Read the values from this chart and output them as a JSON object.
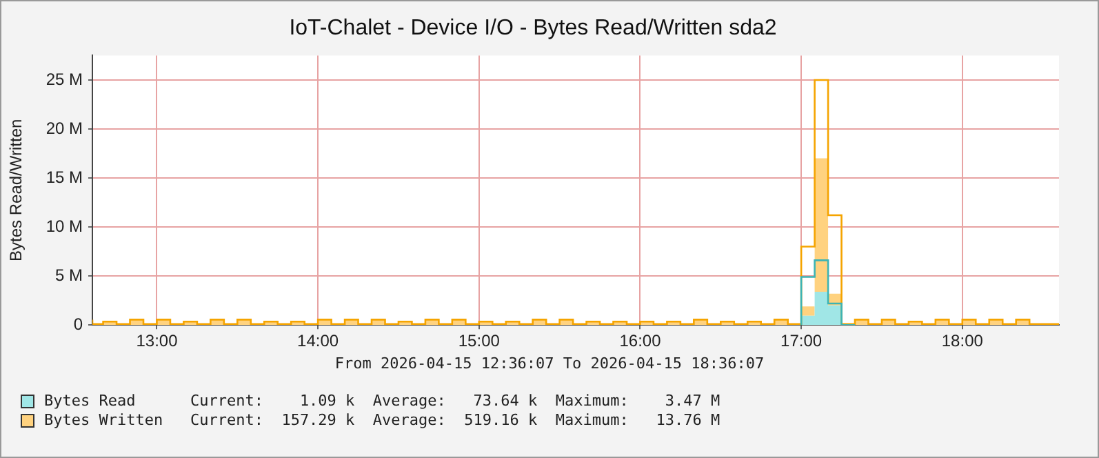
{
  "chart_data": {
    "type": "step",
    "title": "IoT-Chalet - Device I/O - Bytes Read/Written sda2",
    "ylabel": "Bytes Read/Written",
    "x": [
      12.6,
      12.6667,
      12.75,
      12.8333,
      12.9167,
      13,
      13.0833,
      13.1667,
      13.25,
      13.3333,
      13.4167,
      13.5,
      13.5833,
      13.6667,
      13.75,
      13.8333,
      13.9167,
      14,
      14.0833,
      14.1667,
      14.25,
      14.3333,
      14.4167,
      14.5,
      14.5833,
      14.6667,
      14.75,
      14.8333,
      14.9167,
      15,
      15.0833,
      15.1667,
      15.25,
      15.3333,
      15.4167,
      15.5,
      15.5833,
      15.6667,
      15.75,
      15.8333,
      15.9167,
      16,
      16.0833,
      16.1667,
      16.25,
      16.3333,
      16.4167,
      16.5,
      16.5833,
      16.6667,
      16.75,
      16.8333,
      16.9167,
      17,
      17.0833,
      17.1667,
      17.25,
      17.3333,
      17.4167,
      17.5,
      17.5833,
      17.6667,
      17.75,
      17.8333,
      17.9167,
      18,
      18.0833,
      18.1667,
      18.25,
      18.3333,
      18.4167,
      18.5,
      18.6
    ],
    "series": [
      {
        "name": "Bytes Read",
        "type": "area",
        "color": "#a0e6e6",
        "values": [
          0,
          0,
          0,
          0,
          0,
          0,
          0,
          0,
          0,
          0,
          0,
          0,
          0,
          0,
          0,
          0,
          0,
          0,
          0,
          0,
          0,
          0,
          0,
          0,
          0,
          0,
          0,
          0,
          0,
          0,
          0,
          0,
          0,
          0,
          0,
          0,
          0,
          0,
          0,
          0,
          0,
          0,
          0,
          0,
          0,
          0,
          0,
          0,
          0,
          0,
          0,
          0,
          0,
          0,
          0.95,
          3.4,
          2.0,
          0,
          0,
          0,
          0,
          0,
          0,
          0,
          0,
          0,
          0,
          0,
          0,
          0,
          0,
          0,
          0
        ]
      },
      {
        "name": "Bytes Written",
        "type": "area",
        "color": "#ffd27f",
        "values": [
          0.55,
          0.1,
          0.35,
          0.1,
          0.55,
          0.1,
          0.55,
          0.1,
          0.35,
          0.1,
          0.55,
          0.1,
          0.55,
          0.1,
          0.35,
          0.1,
          0.35,
          0.1,
          0.55,
          0.1,
          0.55,
          0.1,
          0.55,
          0.1,
          0.35,
          0.1,
          0.55,
          0.1,
          0.55,
          0.1,
          0.35,
          0.1,
          0.35,
          0.1,
          0.55,
          0.1,
          0.55,
          0.1,
          0.35,
          0.1,
          0.35,
          0.1,
          0.35,
          0.1,
          0.35,
          0.1,
          0.55,
          0.1,
          0.35,
          0.1,
          0.35,
          0.1,
          0.55,
          0.1,
          0.95,
          13.6,
          1.2,
          0.1,
          0.55,
          0.1,
          0.55,
          0.1,
          0.35,
          0.1,
          0.55,
          0.1,
          0.55,
          0.1,
          0.55,
          0.1,
          0.55,
          0.1,
          0.1
        ]
      },
      {
        "type": "step",
        "color": "#3cb4b4",
        "values": [
          null,
          null,
          null,
          null,
          null,
          null,
          null,
          null,
          null,
          null,
          null,
          null,
          null,
          null,
          null,
          null,
          null,
          null,
          null,
          null,
          null,
          null,
          null,
          null,
          null,
          null,
          null,
          null,
          null,
          null,
          null,
          null,
          null,
          null,
          null,
          null,
          null,
          null,
          null,
          null,
          null,
          null,
          null,
          null,
          null,
          null,
          null,
          null,
          null,
          null,
          null,
          null,
          null,
          0,
          4.9,
          6.6,
          2.2,
          0,
          null,
          null,
          null,
          null,
          null,
          null,
          null,
          null,
          null,
          null,
          null,
          null,
          null,
          null,
          null
        ]
      },
      {
        "type": "step",
        "color": "#f5a400",
        "values": [
          0.55,
          0.1,
          0.35,
          0.1,
          0.55,
          0.1,
          0.55,
          0.1,
          0.35,
          0.1,
          0.55,
          0.1,
          0.55,
          0.1,
          0.35,
          0.1,
          0.35,
          0.1,
          0.55,
          0.1,
          0.55,
          0.1,
          0.55,
          0.1,
          0.35,
          0.1,
          0.55,
          0.1,
          0.55,
          0.1,
          0.35,
          0.1,
          0.35,
          0.1,
          0.55,
          0.1,
          0.55,
          0.1,
          0.35,
          0.1,
          0.35,
          0.1,
          0.35,
          0.1,
          0.35,
          0.1,
          0.55,
          0.1,
          0.35,
          0.1,
          0.35,
          0.1,
          0.55,
          0.1,
          8.0,
          25.0,
          11.2,
          0.1,
          0.55,
          0.1,
          0.55,
          0.1,
          0.35,
          0.1,
          0.55,
          0.1,
          0.55,
          0.1,
          0.55,
          0.1,
          0.55,
          0.1,
          0.1
        ]
      }
    ],
    "stacked": true,
    "xlim": [
      12.6,
      18.6
    ],
    "xticks": [
      {
        "value": 13,
        "label": "13:00"
      },
      {
        "value": 14,
        "label": "14:00"
      },
      {
        "value": 15,
        "label": "15:00"
      },
      {
        "value": 16,
        "label": "16:00"
      },
      {
        "value": 17,
        "label": "17:00"
      },
      {
        "value": 18,
        "label": "18:00"
      }
    ],
    "ylim": [
      0,
      27.5
    ],
    "yticks": [
      0,
      {
        "value": 5,
        "label": "5 M"
      },
      {
        "value": 10,
        "label": "10 M"
      },
      {
        "value": 15,
        "label": "15 M"
      },
      {
        "value": 20,
        "label": "20 M"
      },
      {
        "value": 25,
        "label": "25 M"
      }
    ],
    "grid": true,
    "legend": "bottom",
    "annotations": [
      "From 2026-04-15 12:36:07 To 2026-04-15 18:36:07",
      "Current:    1.09 k  Average:   73.64 k  Maximum:    3.47 M",
      "Current:  157.29 k  Average:  519.16 k  Maximum:   13.76 M"
    ]
  }
}
